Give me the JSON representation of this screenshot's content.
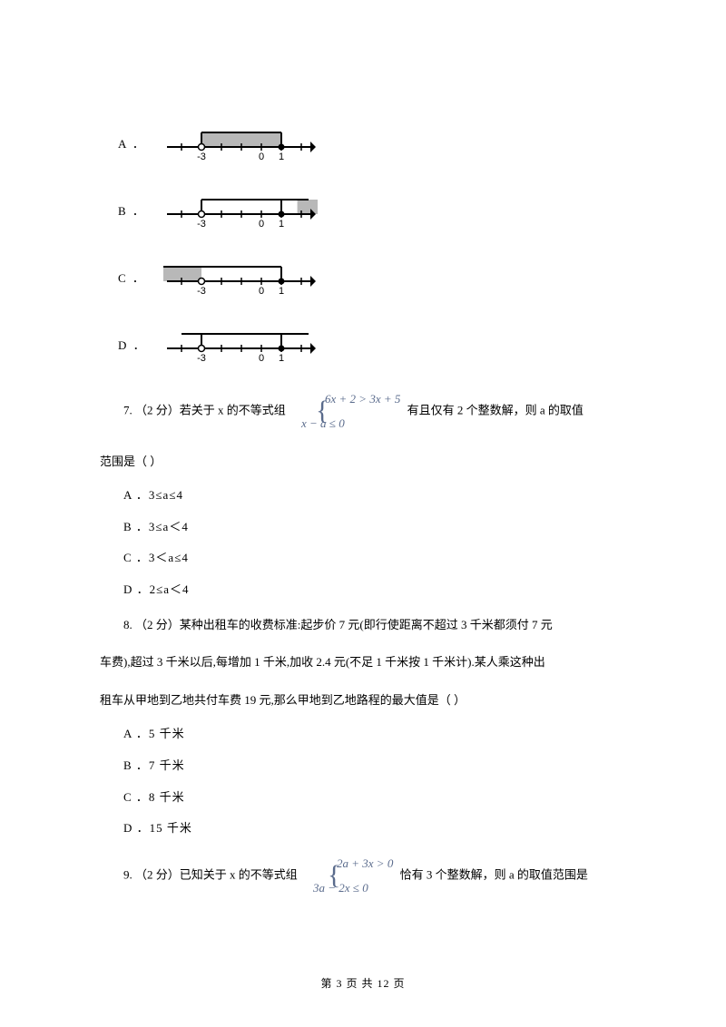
{
  "q6": {
    "optA": "A ．",
    "optB": "B ．",
    "optC": "C ．",
    "optD": "D ．",
    "axisTicks": [
      "-3",
      "0",
      "1"
    ]
  },
  "numline": {
    "width": 170,
    "height": 46,
    "axisY": 32,
    "tickSpacing": 22,
    "stroke": "#000000",
    "strokeWidth": 2,
    "shade": "#b8b8b8",
    "shadeHeight": 16,
    "arrowSize": 6,
    "tickHalf": 4,
    "openR": 3.5,
    "closedR": 3.5,
    "fontSize": 11,
    "startX": 20,
    "a": {
      "openAt": -3,
      "closedAt": 1,
      "shadeFrom": -3,
      "shadeTo": 1
    },
    "b": {
      "openAt": -3,
      "closedAt": 1,
      "shadeFrom": 1.8,
      "shadeTo": 3.5
    },
    "c": {
      "openAt": -3,
      "closedAt": 1,
      "shadeFrom": -5,
      "shadeTo": -3,
      "bracketL": -5,
      "bracketR": 1
    },
    "d": {
      "openAt": -3,
      "closedAt": 1
    }
  },
  "q7": {
    "text1": "7.  （2 分）若关于 x 的不等式组",
    "eq1": "6x + 2 > 3x + 5",
    "eq2": "x − a ≤ 0",
    "text2": "     有且仅有 2 个整数解，则 a 的取值",
    "text3": "范围是（    ）",
    "A": "A ．3≤a≤4",
    "B": "B ．3≤a＜4",
    "C": "C ．3＜a≤4",
    "D": "D ．2≤a＜4"
  },
  "q8": {
    "t1": "8.  （2 分）某种出租车的收费标准:起步价 7 元(即行使距离不超过 3 千米都须付 7 元",
    "t2": "车费),超过 3 千米以后,每增加 1 千米,加收 2.4 元(不足 1 千米按 1 千米计).某人乘这种出",
    "t3": "租车从甲地到乙地共付车费 19 元,那么甲地到乙地路程的最大值是（    ）",
    "A": "A ．5 千米",
    "B": "B ．7 千米",
    "C": "C ．8 千米",
    "D": "D ．15 千米"
  },
  "q9": {
    "text1": "9.  （2 分）已知关于 x 的不等式组",
    "eq1": "2a + 3x > 0",
    "eq2": "3a − 2x ≤ 0",
    "text2": " 恰有 3 个整数解，则 a 的取值范围是"
  },
  "footer": "第 3 页 共 12 页"
}
